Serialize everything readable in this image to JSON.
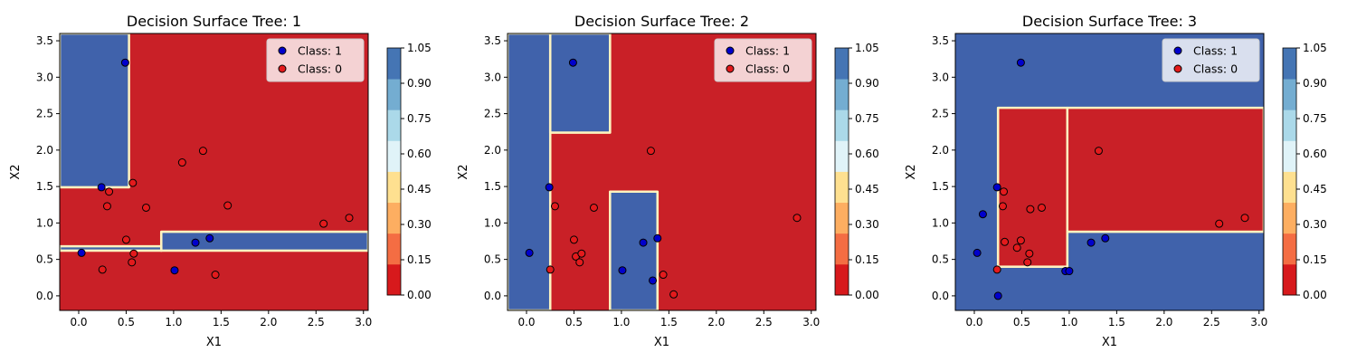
{
  "colormap": [
    "#d7191c",
    "#f46d43",
    "#fdae61",
    "#fee090",
    "#e0f3f8",
    "#abd9e9",
    "#74add1",
    "#4575b4"
  ],
  "fill_colors": {
    "class_1": "#4062ab",
    "class_0": "#c92027",
    "boundary": "#fdf3c0"
  },
  "point_colors": {
    "class_1": "#0000cc",
    "class_0": "#e31a1c",
    "edge": "#000000"
  },
  "chart_data": [
    {
      "type": "scatter",
      "title": "Decision Surface Tree: 1",
      "xlabel": "X1",
      "ylabel": "X2",
      "xlim": [
        -0.2,
        3.05
      ],
      "ylim": [
        -0.2,
        3.6
      ],
      "xticks": [
        "0.0",
        "0.5",
        "1.0",
        "1.5",
        "2.0",
        "2.5",
        "3.0"
      ],
      "yticks": [
        "0.0",
        "0.5",
        "1.0",
        "1.5",
        "2.0",
        "2.5",
        "3.0",
        "3.5"
      ],
      "legend_position": "top-right",
      "series": [
        {
          "name": "Class: 1",
          "class": "1",
          "points": [
            [
              0.49,
              3.2
            ],
            [
              0.24,
              1.49
            ],
            [
              0.03,
              0.59
            ],
            [
              1.23,
              0.73
            ],
            [
              1.38,
              0.79
            ],
            [
              1.01,
              0.35
            ]
          ]
        },
        {
          "name": "Class: 0",
          "class": "0",
          "points": [
            [
              0.32,
              1.43
            ],
            [
              0.3,
              1.23
            ],
            [
              0.57,
              1.55
            ],
            [
              0.71,
              1.21
            ],
            [
              1.09,
              1.83
            ],
            [
              1.31,
              1.99
            ],
            [
              1.57,
              1.24
            ],
            [
              2.58,
              0.99
            ],
            [
              2.85,
              1.07
            ],
            [
              0.5,
              0.77
            ],
            [
              0.58,
              0.58
            ],
            [
              0.25,
              0.36
            ],
            [
              0.56,
              0.46
            ],
            [
              1.44,
              0.29
            ]
          ]
        }
      ],
      "regions_class_1": [
        [
          -0.2,
          1.49,
          0.53,
          3.6
        ],
        [
          0.87,
          0.62,
          3.05,
          0.88
        ],
        [
          -0.2,
          0.62,
          0.87,
          0.68
        ]
      ],
      "colorbar": {
        "ticks": [
          "0.00",
          "0.15",
          "0.30",
          "0.45",
          "0.60",
          "0.75",
          "0.90",
          "1.05"
        ]
      }
    },
    {
      "type": "scatter",
      "title": "Decision Surface Tree: 2",
      "xlabel": "X1",
      "ylabel": "X2",
      "xlim": [
        -0.2,
        3.05
      ],
      "ylim": [
        -0.2,
        3.6
      ],
      "xticks": [
        "0.0",
        "0.5",
        "1.0",
        "1.5",
        "2.0",
        "2.5",
        "3.0"
      ],
      "yticks": [
        "0.0",
        "0.5",
        "1.0",
        "1.5",
        "2.0",
        "2.5",
        "3.0",
        "3.5"
      ],
      "legend_position": "top-right",
      "series": [
        {
          "name": "Class: 1",
          "class": "1",
          "points": [
            [
              0.49,
              3.2
            ],
            [
              0.24,
              1.49
            ],
            [
              0.03,
              0.59
            ],
            [
              1.23,
              0.73
            ],
            [
              1.38,
              0.79
            ],
            [
              1.01,
              0.35
            ],
            [
              1.33,
              0.21
            ]
          ]
        },
        {
          "name": "Class: 0",
          "class": "0",
          "points": [
            [
              0.3,
              1.23
            ],
            [
              0.71,
              1.21
            ],
            [
              1.31,
              1.99
            ],
            [
              2.85,
              1.07
            ],
            [
              0.5,
              0.77
            ],
            [
              0.52,
              0.54
            ],
            [
              0.58,
              0.58
            ],
            [
              0.56,
              0.46
            ],
            [
              0.25,
              0.36
            ],
            [
              1.44,
              0.29
            ],
            [
              1.55,
              0.02
            ]
          ]
        }
      ],
      "regions_class_1": [
        [
          -0.2,
          -0.2,
          0.25,
          3.6
        ],
        [
          0.25,
          2.24,
          0.88,
          3.6
        ],
        [
          0.88,
          -0.2,
          1.38,
          1.43
        ]
      ],
      "colorbar": {
        "ticks": [
          "0.00",
          "0.15",
          "0.30",
          "0.45",
          "0.60",
          "0.75",
          "0.90",
          "1.05"
        ]
      }
    },
    {
      "type": "scatter",
      "title": "Decision Surface Tree: 3",
      "xlabel": "X1",
      "ylabel": "X2",
      "xlim": [
        -0.2,
        3.05
      ],
      "ylim": [
        -0.2,
        3.6
      ],
      "xticks": [
        "0.0",
        "0.5",
        "1.0",
        "1.5",
        "2.0",
        "2.5",
        "3.0"
      ],
      "yticks": [
        "0.0",
        "0.5",
        "1.0",
        "1.5",
        "2.0",
        "2.5",
        "3.0",
        "3.5"
      ],
      "legend_position": "top-right",
      "series": [
        {
          "name": "Class: 1",
          "class": "1",
          "points": [
            [
              0.49,
              3.2
            ],
            [
              0.24,
              1.49
            ],
            [
              0.09,
              1.12
            ],
            [
              0.03,
              0.59
            ],
            [
              0.25,
              0.0
            ],
            [
              0.96,
              0.34
            ],
            [
              1.0,
              0.34
            ],
            [
              1.23,
              0.73
            ],
            [
              1.38,
              0.79
            ]
          ]
        },
        {
          "name": "Class: 0",
          "class": "0",
          "points": [
            [
              0.31,
              1.43
            ],
            [
              0.3,
              1.23
            ],
            [
              0.59,
              1.19
            ],
            [
              0.71,
              1.21
            ],
            [
              1.31,
              1.99
            ],
            [
              2.58,
              0.99
            ],
            [
              2.85,
              1.07
            ],
            [
              0.32,
              0.74
            ],
            [
              0.45,
              0.66
            ],
            [
              0.49,
              0.76
            ],
            [
              0.58,
              0.58
            ],
            [
              0.56,
              0.46
            ],
            [
              0.24,
              0.36
            ]
          ]
        }
      ],
      "regions_class_0": [
        [
          0.25,
          0.4,
          0.98,
          2.58
        ],
        [
          0.98,
          0.88,
          3.05,
          2.58
        ]
      ],
      "colorbar": {
        "ticks": [
          "0.00",
          "0.15",
          "0.30",
          "0.45",
          "0.60",
          "0.75",
          "0.90",
          "1.05"
        ]
      }
    }
  ]
}
